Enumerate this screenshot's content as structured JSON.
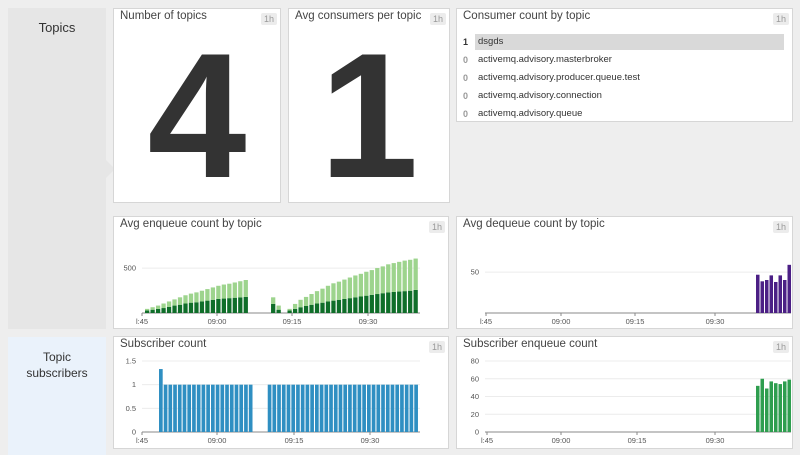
{
  "groups": {
    "topics_label": "Topics",
    "subscribers_label_line1": "Topic",
    "subscribers_label_line2": "subscribers"
  },
  "panels": {
    "num_topics": {
      "title": "Number of topics",
      "badge": "1h",
      "value": "4"
    },
    "avg_consumers": {
      "title": "Avg consumers per topic",
      "badge": "1h",
      "value": "1"
    },
    "consumer_count": {
      "title": "Consumer count by topic",
      "badge": "1h",
      "rows": [
        {
          "rank": "1",
          "name": "dsgds"
        },
        {
          "rank": "0",
          "name": "activemq.advisory.masterbroker"
        },
        {
          "rank": "0",
          "name": "activemq.advisory.producer.queue.test"
        },
        {
          "rank": "0",
          "name": "activemq.advisory.connection"
        },
        {
          "rank": "0",
          "name": "activemq.advisory.queue"
        }
      ]
    },
    "avg_enqueue": {
      "title": "Avg enqueue count by topic",
      "badge": "1h"
    },
    "avg_dequeue": {
      "title": "Avg dequeue count by topic",
      "badge": "1h"
    },
    "subscriber_count": {
      "title": "Subscriber count",
      "badge": "1h"
    },
    "subscriber_enqueue": {
      "title": "Subscriber enqueue count",
      "badge": "1h"
    }
  },
  "chart_data": [
    {
      "id": "avg_enqueue",
      "type": "bar",
      "stacked": true,
      "title": "Avg enqueue count by topic",
      "x_ticks": [
        "l:45",
        "09:00",
        "09:15",
        "09:30"
      ],
      "y_ticks": [
        "500"
      ],
      "ylim": [
        0,
        800
      ],
      "series": [
        {
          "color": "#0f6e29",
          "values": [
            30,
            40,
            50,
            60,
            75,
            90,
            100,
            115,
            125,
            130,
            140,
            150,
            160,
            170,
            175,
            180,
            185,
            190,
            195,
            null,
            null,
            null,
            null,
            110,
            40,
            null,
            30,
            50,
            70,
            85,
            100,
            115,
            125,
            140,
            150,
            160,
            170,
            180,
            190,
            200,
            210,
            220,
            230,
            240,
            250,
            255,
            260,
            265,
            270,
            280
          ]
        },
        {
          "color": "#9dd48d",
          "values": [
            20,
            30,
            40,
            55,
            65,
            75,
            90,
            100,
            110,
            120,
            130,
            140,
            150,
            160,
            170,
            175,
            185,
            195,
            205,
            null,
            null,
            null,
            null,
            80,
            50,
            null,
            20,
            60,
            90,
            110,
            130,
            150,
            170,
            190,
            210,
            220,
            235,
            250,
            265,
            275,
            290,
            300,
            315,
            325,
            340,
            350,
            360,
            370,
            375,
            380
          ]
        }
      ]
    },
    {
      "id": "avg_dequeue",
      "type": "bar",
      "title": "Avg dequeue count by topic",
      "x_ticks": [
        "l:45",
        "09:00",
        "09:15",
        "09:30"
      ],
      "y_ticks": [
        "50"
      ],
      "ylim": [
        0,
        100
      ],
      "series": [
        {
          "color": "#4b1f85",
          "values": [
            58,
            48,
            50,
            57,
            47,
            57,
            50,
            73
          ]
        }
      ]
    },
    {
      "id": "subscriber_count",
      "type": "bar",
      "title": "Subscriber count",
      "x_ticks": [
        "l:45",
        "09:00",
        "09:15",
        "09:30"
      ],
      "y_ticks": [
        "1.5",
        "1",
        "0.5",
        "0"
      ],
      "ylim": [
        0,
        1.5
      ],
      "series": [
        {
          "color": "#2f8fc2",
          "values": [
            1.33,
            1,
            1,
            1,
            1,
            1,
            1,
            1,
            1,
            1,
            1,
            1,
            1,
            1,
            1,
            1,
            1,
            1,
            1,
            1,
            null,
            null,
            null,
            1,
            1,
            1,
            1,
            1,
            1,
            1,
            1,
            1,
            1,
            1,
            1,
            1,
            1,
            1,
            1,
            1,
            1,
            1,
            1,
            1,
            1,
            1,
            1,
            1,
            1,
            1,
            1,
            1,
            1,
            1,
            1
          ]
        }
      ]
    },
    {
      "id": "subscriber_enqueue",
      "type": "bar",
      "title": "Subscriber enqueue count",
      "x_ticks": [
        "l:45",
        "09:00",
        "09:15",
        "09:30"
      ],
      "y_ticks": [
        "80",
        "60",
        "40",
        "20",
        "0"
      ],
      "ylim": [
        0,
        80
      ],
      "series": [
        {
          "color": "#2e9e4f",
          "values": [
            52,
            60,
            49,
            57,
            55,
            54,
            57,
            59
          ]
        }
      ]
    }
  ]
}
